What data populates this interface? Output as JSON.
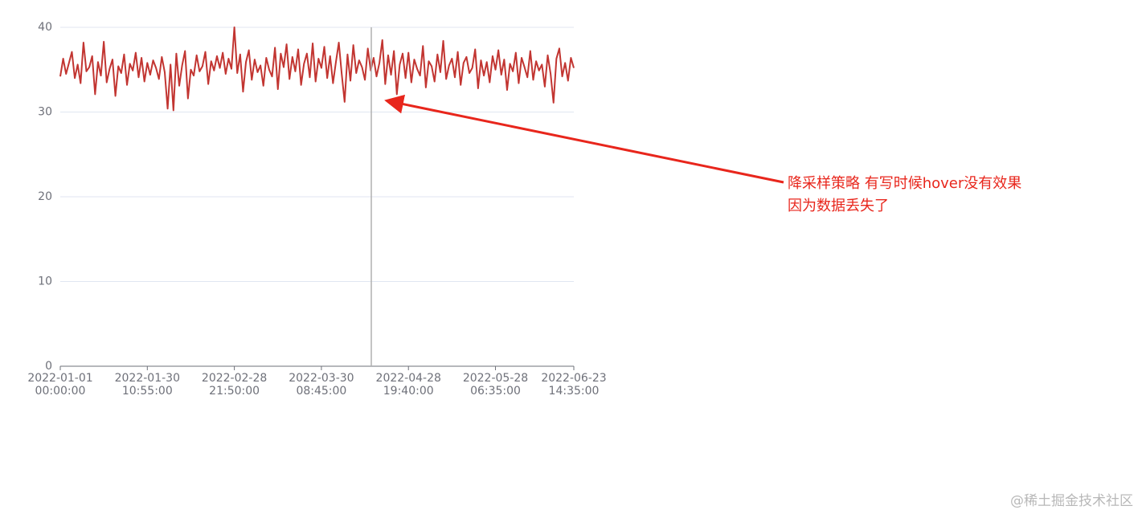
{
  "chart_data": {
    "type": "line",
    "categories": [
      "2022-01-01 00:00:00",
      null,
      null,
      null,
      null,
      null,
      null,
      null,
      null,
      null,
      null,
      null,
      null,
      null,
      null,
      null,
      null,
      null,
      null,
      null,
      null,
      null,
      null,
      null,
      null,
      null,
      null,
      null,
      null,
      null,
      "2022-01-30 10:55:00",
      null,
      null,
      null,
      null,
      null,
      null,
      null,
      null,
      null,
      null,
      null,
      null,
      null,
      null,
      null,
      null,
      null,
      null,
      null,
      null,
      null,
      null,
      null,
      null,
      null,
      null,
      null,
      null,
      null,
      "2022-02-28 21:50:00",
      null,
      null,
      null,
      null,
      null,
      null,
      null,
      null,
      null,
      null,
      null,
      null,
      null,
      null,
      null,
      null,
      null,
      null,
      null,
      null,
      null,
      null,
      null,
      null,
      null,
      null,
      null,
      null,
      null,
      "2022-03-30 08:45:00",
      null,
      null,
      null,
      null,
      null,
      null,
      null,
      null,
      null,
      null,
      null,
      null,
      null,
      null,
      null,
      null,
      null,
      null,
      null,
      null,
      null,
      null,
      null,
      null,
      null,
      null,
      null,
      null,
      null,
      "2022-04-28 19:40:00",
      null,
      null,
      null,
      null,
      null,
      null,
      null,
      null,
      null,
      null,
      null,
      null,
      null,
      null,
      null,
      null,
      null,
      null,
      null,
      null,
      null,
      null,
      null,
      null,
      null,
      null,
      null,
      null,
      null,
      "2022-05-28 06:35:00",
      null,
      null,
      null,
      null,
      null,
      null,
      null,
      null,
      null,
      null,
      null,
      null,
      null,
      null,
      null,
      null,
      null,
      null,
      null,
      null,
      null,
      null,
      null,
      null,
      null,
      null,
      "2022-06-23 14:35:00"
    ],
    "series": [
      {
        "color": "#c23531",
        "values": [
          34.2,
          36.3,
          34.5,
          35.8,
          37.1,
          34.0,
          35.6,
          33.4,
          38.2,
          34.8,
          35.3,
          36.6,
          32.1,
          35.9,
          34.3,
          38.3,
          33.5,
          35.1,
          36.2,
          31.9,
          35.4,
          34.6,
          36.8,
          33.2,
          35.7,
          34.9,
          37.0,
          34.1,
          36.4,
          33.6,
          35.8,
          34.4,
          36.1,
          35.2,
          33.9,
          36.5,
          34.7,
          30.4,
          35.6,
          30.2,
          36.9,
          33.1,
          35.5,
          37.2,
          31.6,
          35.0,
          34.3,
          36.7,
          34.8,
          35.4,
          37.1,
          33.3,
          36.0,
          34.9,
          36.6,
          35.2,
          37.0,
          34.5,
          36.3,
          35.1,
          40.0,
          34.6,
          36.8,
          32.4,
          35.9,
          37.3,
          33.8,
          36.2,
          34.7,
          35.5,
          33.1,
          36.4,
          35.0,
          34.2,
          37.6,
          32.7,
          36.9,
          35.3,
          38.0,
          33.9,
          36.5,
          34.8,
          37.4,
          33.2,
          35.7,
          36.9,
          34.1,
          38.1,
          33.6,
          36.3,
          35.2,
          37.7,
          34.0,
          36.6,
          33.4,
          35.9,
          38.2,
          34.5,
          31.2,
          36.8,
          33.7,
          37.9,
          34.6,
          36.1,
          35.3,
          33.8,
          37.5,
          34.9,
          36.4,
          34.2,
          35.8,
          38.5,
          33.3,
          36.7,
          34.4,
          37.2,
          32.1,
          35.6,
          36.9,
          34.0,
          37.0,
          33.5,
          36.2,
          35.1,
          34.3,
          37.8,
          32.9,
          36.0,
          35.4,
          33.6,
          36.8,
          34.7,
          38.4,
          33.9,
          35.5,
          36.3,
          34.1,
          37.1,
          33.2,
          35.8,
          36.5,
          34.6,
          35.2,
          37.4,
          32.8,
          36.1,
          34.3,
          35.9,
          33.5,
          36.6,
          35.0,
          37.3,
          34.4,
          36.2,
          32.6,
          35.7,
          34.8,
          37.0,
          33.4,
          36.4,
          35.3,
          34.1,
          37.2,
          33.8,
          36.0,
          34.9,
          35.6,
          33.0,
          36.7,
          34.5,
          31.1,
          36.3,
          37.5,
          34.2,
          35.8,
          33.7,
          36.4,
          35.2
        ]
      }
    ],
    "ylim": [
      0,
      40
    ],
    "yticks": [
      0,
      10,
      20,
      30,
      40
    ],
    "grid": true,
    "annotation": [
      "降采样策略 有写时候hover没有效果",
      "因为数据丢失了"
    ]
  },
  "watermark": "@稀土掘金技术社区"
}
